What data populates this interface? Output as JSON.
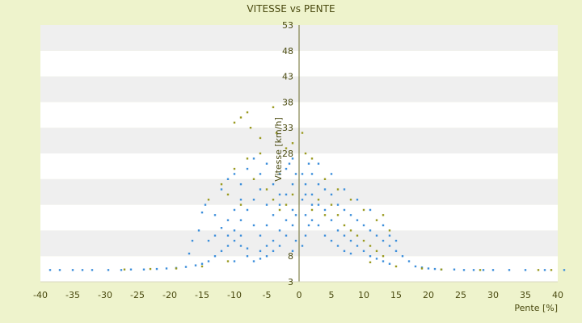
{
  "chart_data": {
    "type": "scatter",
    "title": "VITESSE vs PENTE",
    "xlabel": "Pente [%]",
    "ylabel": "Vitesse [km/h]",
    "xlim": [
      -40,
      40
    ],
    "ylim": [
      3,
      53
    ],
    "x_ticks": [
      -40,
      -35,
      -30,
      -25,
      -20,
      -15,
      -10,
      -5,
      0,
      5,
      10,
      15,
      20,
      25,
      30,
      35,
      40
    ],
    "y_ticks": [
      3,
      8,
      13,
      18,
      23,
      28,
      33,
      38,
      43,
      48,
      53
    ],
    "y_tick_labels": [
      "3",
      "8",
      "",
      "",
      "",
      "28",
      "33",
      "38",
      "43",
      "48",
      "53"
    ],
    "y_axis_at_x": 0,
    "grid": "horizontal alternating bands",
    "legend": "none",
    "colors": {
      "background": "#eef3cc",
      "plot_band_light": "#ffffff",
      "plot_band_dark": "#efefef",
      "axis": "#6b6b2a",
      "series_primary": "#3d8fdb",
      "series_secondary": "#9a9a20"
    },
    "series": [
      {
        "color": "#3d8fdb",
        "points": [
          [
            -38.5,
            5.3
          ],
          [
            -37,
            5.3
          ],
          [
            -35,
            5.3
          ],
          [
            -33.5,
            5.3
          ],
          [
            -32,
            5.3
          ],
          [
            -29.5,
            5.3
          ],
          [
            -27.5,
            5.3
          ],
          [
            -26,
            5.4
          ],
          [
            -24,
            5.4
          ],
          [
            -22,
            5.5
          ],
          [
            -20.5,
            5.6
          ],
          [
            -19,
            5.7
          ],
          [
            -17.5,
            5.9
          ],
          [
            -16,
            6.2
          ],
          [
            -15,
            6.5
          ],
          [
            -14,
            7
          ],
          [
            -15,
            16.5
          ],
          [
            -14.5,
            18
          ],
          [
            -13,
            16
          ],
          [
            -12,
            13.5
          ],
          [
            -11,
            12
          ],
          [
            -10,
            11
          ],
          [
            -9,
            10
          ],
          [
            -8,
            9.5
          ],
          [
            -13,
            8
          ],
          [
            -12,
            9
          ],
          [
            -11,
            10
          ],
          [
            -10,
            13
          ],
          [
            -9,
            15
          ],
          [
            -8,
            17
          ],
          [
            -7,
            19
          ],
          [
            -6,
            21
          ],
          [
            -12,
            21
          ],
          [
            -11,
            23
          ],
          [
            -10,
            24
          ],
          [
            -9,
            22
          ],
          [
            -8,
            25
          ],
          [
            -7,
            27
          ],
          [
            -6,
            24
          ],
          [
            -5,
            26
          ],
          [
            -7,
            7
          ],
          [
            -6,
            7.5
          ],
          [
            -5,
            8
          ],
          [
            -4,
            9
          ],
          [
            -3,
            10
          ],
          [
            -2,
            12
          ],
          [
            -1,
            14
          ],
          [
            -0.5,
            16
          ],
          [
            -6,
            12
          ],
          [
            -5,
            14
          ],
          [
            -4,
            16
          ],
          [
            -3,
            18
          ],
          [
            -2,
            20
          ],
          [
            -1,
            22
          ],
          [
            -0.5,
            24
          ],
          [
            -4,
            22
          ],
          [
            -3,
            24
          ],
          [
            -2,
            25
          ],
          [
            -1.5,
            26
          ],
          [
            -1,
            27
          ],
          [
            -3,
            20
          ],
          [
            -5,
            18
          ],
          [
            -7,
            14
          ],
          [
            -9,
            12
          ],
          [
            -17,
            8.5
          ],
          [
            -16.5,
            11
          ],
          [
            -15.5,
            13
          ],
          [
            -14,
            11
          ],
          [
            -13,
            12
          ],
          [
            -11,
            15
          ],
          [
            -10,
            17
          ],
          [
            -9,
            19
          ],
          [
            -5,
            10
          ],
          [
            -4,
            11
          ],
          [
            -3,
            13
          ],
          [
            -2,
            15
          ],
          [
            -1,
            17
          ],
          [
            -6,
            9
          ],
          [
            -8,
            8
          ],
          [
            -10,
            7
          ],
          [
            0.5,
            24
          ],
          [
            1,
            22
          ],
          [
            1.5,
            26
          ],
          [
            2,
            20
          ],
          [
            3,
            18
          ],
          [
            4,
            17
          ],
          [
            5,
            15
          ],
          [
            6,
            13
          ],
          [
            7,
            12
          ],
          [
            8,
            11
          ],
          [
            9,
            10
          ],
          [
            10,
            9
          ],
          [
            11,
            8
          ],
          [
            12,
            7.5
          ],
          [
            13,
            7
          ],
          [
            14,
            6.5
          ],
          [
            1,
            16
          ],
          [
            2,
            15
          ],
          [
            3,
            14
          ],
          [
            4,
            12
          ],
          [
            5,
            11
          ],
          [
            6,
            10
          ],
          [
            7,
            9
          ],
          [
            8,
            8.5
          ],
          [
            2,
            24
          ],
          [
            3,
            22
          ],
          [
            4,
            21
          ],
          [
            5,
            20
          ],
          [
            6,
            18
          ],
          [
            7,
            17
          ],
          [
            8,
            16
          ],
          [
            9,
            15
          ],
          [
            10,
            14
          ],
          [
            11,
            13
          ],
          [
            12,
            12
          ],
          [
            13,
            11
          ],
          [
            14,
            10
          ],
          [
            15,
            9
          ],
          [
            16,
            8
          ],
          [
            17,
            7
          ],
          [
            3,
            26
          ],
          [
            5,
            24
          ],
          [
            7,
            21
          ],
          [
            9,
            19
          ],
          [
            11,
            17
          ],
          [
            13,
            14
          ],
          [
            15,
            11
          ],
          [
            14,
            12
          ],
          [
            18,
            6
          ],
          [
            19,
            5.8
          ],
          [
            20,
            5.6
          ],
          [
            21,
            5.5
          ],
          [
            22,
            5.4
          ],
          [
            24,
            5.4
          ],
          [
            25.5,
            5.3
          ],
          [
            27,
            5.3
          ],
          [
            28.5,
            5.3
          ],
          [
            30,
            5.3
          ],
          [
            32.5,
            5.3
          ],
          [
            35,
            5.3
          ],
          [
            38,
            5.3
          ],
          [
            41,
            5.3
          ],
          [
            0.5,
            10
          ],
          [
            1,
            12
          ],
          [
            1.5,
            14
          ],
          [
            2,
            18
          ],
          [
            0.5,
            19
          ],
          [
            1,
            20
          ],
          [
            -0.5,
            11
          ],
          [
            -1,
            9
          ]
        ]
      },
      {
        "color": "#9a9a20",
        "points": [
          [
            -10,
            34
          ],
          [
            -9,
            35
          ],
          [
            -8,
            36
          ],
          [
            -7.5,
            33
          ],
          [
            -6,
            31
          ],
          [
            -4,
            37
          ],
          [
            -3.5,
            32
          ],
          [
            -2,
            29
          ],
          [
            -6,
            28
          ],
          [
            -8,
            27
          ],
          [
            -10,
            25
          ],
          [
            -12,
            22
          ],
          [
            -14,
            19
          ],
          [
            -11,
            20
          ],
          [
            -9,
            18
          ],
          [
            -7,
            23
          ],
          [
            -5,
            21
          ],
          [
            -4,
            19
          ],
          [
            -3,
            17
          ],
          [
            -2,
            18
          ],
          [
            -1,
            20
          ],
          [
            2,
            17
          ],
          [
            3,
            19
          ],
          [
            4,
            16
          ],
          [
            5,
            18
          ],
          [
            6,
            16
          ],
          [
            7,
            14
          ],
          [
            8,
            13
          ],
          [
            9,
            12
          ],
          [
            10,
            11
          ],
          [
            11,
            10
          ],
          [
            12,
            9
          ],
          [
            13,
            8
          ],
          [
            4,
            23
          ],
          [
            6,
            21
          ],
          [
            8,
            19
          ],
          [
            10,
            17
          ],
          [
            12,
            15
          ],
          [
            14,
            13
          ],
          [
            13,
            16
          ],
          [
            -27,
            5.4
          ],
          [
            -23,
            5.5
          ],
          [
            -19,
            5.6
          ],
          [
            -15,
            6
          ],
          [
            -11,
            7
          ],
          [
            11,
            6.8
          ],
          [
            15,
            6
          ],
          [
            19,
            5.6
          ],
          [
            22,
            5.4
          ],
          [
            28,
            5.3
          ],
          [
            37,
            5.3
          ],
          [
            39,
            5.3
          ],
          [
            1,
            28
          ],
          [
            2,
            27
          ],
          [
            -1,
            30
          ],
          [
            0.5,
            32
          ]
        ]
      }
    ]
  }
}
